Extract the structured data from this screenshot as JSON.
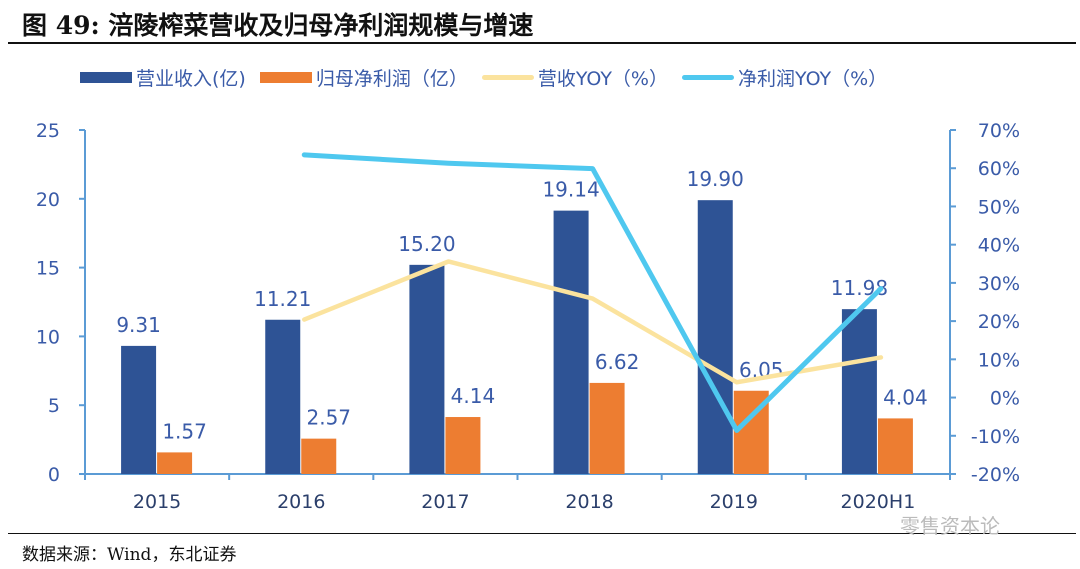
{
  "title": "图  49:  涪陵榨菜营收及归母净利润规模与增速",
  "source": "数据来源：Wind，东北证券",
  "watermark": "零售资本论",
  "chart_data": {
    "type": "bar+line",
    "categories": [
      "2015",
      "2016",
      "2017",
      "2018",
      "2019",
      "2020H1"
    ],
    "left_axis": {
      "range": [
        0,
        25
      ],
      "ticks": [
        "0",
        "5",
        "10",
        "15",
        "20",
        "25"
      ]
    },
    "right_axis": {
      "range": [
        -20,
        70
      ],
      "ticks": [
        "-20%",
        "-10%",
        "0%",
        "10%",
        "20%",
        "30%",
        "40%",
        "50%",
        "60%",
        "70%"
      ]
    },
    "legend_position": "top",
    "grid": false,
    "series": [
      {
        "name": "营业收入(亿)",
        "kind": "bar",
        "axis": "left",
        "color": "#2e5395",
        "values": [
          9.31,
          11.21,
          15.2,
          19.14,
          19.9,
          11.98
        ],
        "labels": [
          "9.31",
          "11.21",
          "15.20",
          "19.14",
          "19.90",
          "11.98"
        ]
      },
      {
        "name": "归母净利润（亿）",
        "kind": "bar",
        "axis": "left",
        "color": "#ed7d31",
        "values": [
          1.57,
          2.57,
          4.14,
          6.62,
          6.05,
          4.04
        ],
        "labels": [
          "1.57",
          "2.57",
          "4.14",
          "6.62",
          "6.05",
          "4.04"
        ]
      },
      {
        "name": "营收YOY（%）",
        "kind": "line",
        "axis": "right",
        "color": "#fbe39e",
        "values": [
          null,
          20.4,
          35.6,
          25.9,
          4.0,
          10.5
        ]
      },
      {
        "name": "净利润YOY（%）",
        "kind": "line",
        "axis": "right",
        "color": "#4fc8ef",
        "values": [
          null,
          63.5,
          61.3,
          59.9,
          -8.6,
          28.5
        ]
      }
    ]
  }
}
